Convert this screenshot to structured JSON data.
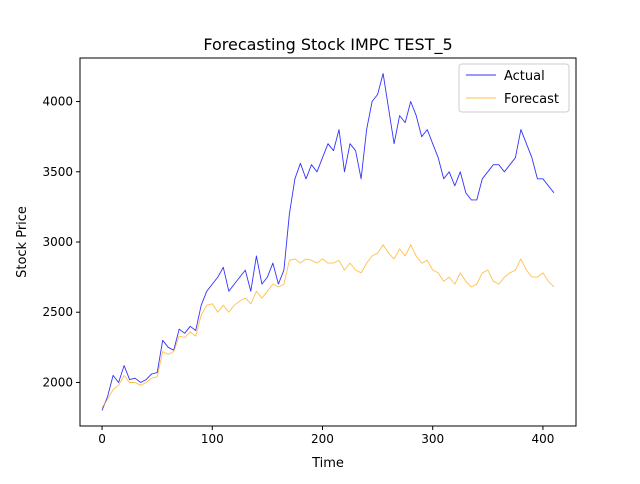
{
  "chart_data": {
    "type": "line",
    "title": "Forecasting Stock IMPC TEST_5",
    "xlabel": "Time",
    "ylabel": "Stock Price",
    "xlim": [
      -20,
      430
    ],
    "ylim": [
      1690,
      4310
    ],
    "xticks": [
      0,
      100,
      200,
      300,
      400
    ],
    "yticks": [
      2000,
      2500,
      3000,
      3500,
      4000
    ],
    "grid": false,
    "legend_position": "top-right",
    "series": [
      {
        "name": "Actual",
        "color": "#0000ff",
        "x": [
          0,
          5,
          10,
          15,
          20,
          25,
          30,
          35,
          40,
          45,
          50,
          55,
          60,
          65,
          70,
          75,
          80,
          85,
          90,
          95,
          100,
          105,
          110,
          115,
          120,
          125,
          130,
          135,
          140,
          145,
          150,
          155,
          160,
          165,
          170,
          175,
          180,
          185,
          190,
          195,
          200,
          205,
          210,
          215,
          220,
          225,
          230,
          235,
          240,
          245,
          250,
          255,
          260,
          265,
          270,
          275,
          280,
          285,
          290,
          295,
          300,
          305,
          310,
          315,
          320,
          325,
          330,
          335,
          340,
          345,
          350,
          355,
          360,
          365,
          370,
          375,
          380,
          385,
          390,
          395,
          400,
          405,
          410
        ],
        "values": [
          1800,
          1900,
          2050,
          2000,
          2120,
          2020,
          2030,
          2000,
          2020,
          2060,
          2070,
          2300,
          2250,
          2230,
          2380,
          2350,
          2400,
          2370,
          2550,
          2650,
          2700,
          2750,
          2820,
          2650,
          2700,
          2750,
          2800,
          2650,
          2900,
          2700,
          2750,
          2850,
          2700,
          2800,
          3200,
          3450,
          3560,
          3450,
          3550,
          3500,
          3600,
          3700,
          3650,
          3800,
          3500,
          3700,
          3650,
          3450,
          3800,
          4000,
          4050,
          4200,
          3950,
          3700,
          3900,
          3850,
          4000,
          3900,
          3750,
          3800,
          3700,
          3600,
          3450,
          3500,
          3400,
          3500,
          3350,
          3300,
          3300,
          3450,
          3500,
          3550,
          3550,
          3500,
          3550,
          3600,
          3800,
          3700,
          3600,
          3450,
          3450,
          3400,
          3350
        ]
      },
      {
        "name": "Forecast",
        "color": "#ffa500",
        "x": [
          0,
          5,
          10,
          15,
          20,
          25,
          30,
          35,
          40,
          45,
          50,
          55,
          60,
          65,
          70,
          75,
          80,
          85,
          90,
          95,
          100,
          105,
          110,
          115,
          120,
          125,
          130,
          135,
          140,
          145,
          150,
          155,
          160,
          165,
          170,
          175,
          180,
          185,
          190,
          195,
          200,
          205,
          210,
          215,
          220,
          225,
          230,
          235,
          240,
          245,
          250,
          255,
          260,
          265,
          270,
          275,
          280,
          285,
          290,
          295,
          300,
          305,
          310,
          315,
          320,
          325,
          330,
          335,
          340,
          345,
          350,
          355,
          360,
          365,
          370,
          375,
          380,
          385,
          390,
          395,
          400,
          405,
          410
        ],
        "values": [
          1820,
          1880,
          1950,
          1980,
          2050,
          2000,
          2000,
          1980,
          2000,
          2030,
          2040,
          2220,
          2200,
          2220,
          2330,
          2320,
          2360,
          2330,
          2480,
          2550,
          2560,
          2500,
          2550,
          2500,
          2550,
          2580,
          2600,
          2560,
          2650,
          2600,
          2650,
          2700,
          2680,
          2700,
          2870,
          2880,
          2850,
          2880,
          2870,
          2850,
          2880,
          2850,
          2850,
          2870,
          2800,
          2850,
          2800,
          2780,
          2850,
          2900,
          2920,
          2980,
          2920,
          2880,
          2950,
          2900,
          2980,
          2900,
          2850,
          2870,
          2800,
          2780,
          2720,
          2750,
          2700,
          2780,
          2720,
          2680,
          2700,
          2780,
          2800,
          2720,
          2700,
          2750,
          2780,
          2800,
          2880,
          2800,
          2750,
          2750,
          2780,
          2720,
          2680
        ]
      }
    ]
  }
}
